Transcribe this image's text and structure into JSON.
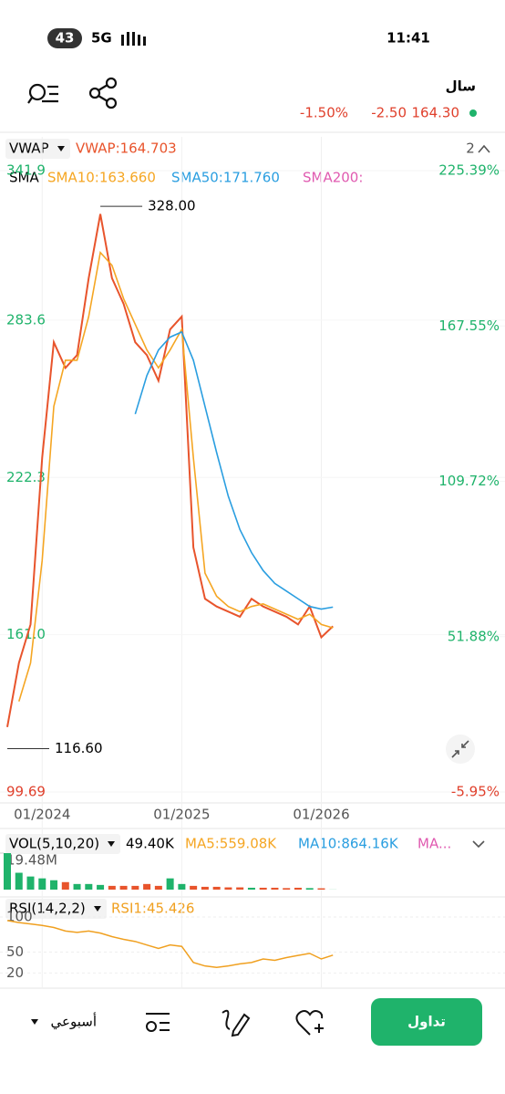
{
  "status_bar": {
    "battery": "43",
    "network": "5G",
    "time": "11:41"
  },
  "header": {
    "title": "سال",
    "change_pct": "-1.50%",
    "change": "-2.50",
    "price": "164.30"
  },
  "indicators": {
    "vwap_name": "VWAP",
    "vwap_value": "VWAP:164.703",
    "panes": "2",
    "sma_name": "SMA",
    "sma10": "SMA10:163.660",
    "sma50": "SMA50:171.760",
    "sma200": "SMA200:"
  },
  "chart_data": [
    {
      "type": "line",
      "x": [
        "10/2023",
        "11/2023",
        "12/2023",
        "01/2024",
        "02/2024",
        "03/2024",
        "04/2024",
        "05/2024",
        "06/2024",
        "07/2024",
        "08/2024",
        "09/2024",
        "10/2024",
        "11/2024",
        "12/2024",
        "01/2025",
        "02/2025",
        "03/2025",
        "04/2025",
        "05/2025",
        "06/2025",
        "07/2025",
        "08/2025",
        "09/2025",
        "10/2025",
        "11/2025",
        "12/2025",
        "01/2026",
        "02/2026"
      ],
      "xlim": [
        "10/2023",
        "03/2026"
      ],
      "xticks": [
        "01/2024",
        "01/2025",
        "01/2026"
      ],
      "ylim": [
        99.69,
        341.9
      ],
      "yticks": [
        341.9,
        283.6,
        222.3,
        {
          "value": 161,
          "label": "161.0"
        },
        99.69
      ],
      "y2lim": [
        -5.95,
        225.39
      ],
      "y2ticks": [
        {
          "value": 225.39,
          "label": "225.39%"
        },
        {
          "value": 167.55,
          "label": "167.55%"
        },
        {
          "value": 109.72,
          "label": "109.72%"
        },
        {
          "value": 51.88,
          "label": "51.88%"
        },
        {
          "value": -5.95,
          "label": "-5.95%"
        }
      ],
      "series": [
        {
          "color": "#e8542c",
          "values": [
            125,
            150,
            165,
            230,
            275,
            265,
            270,
            300,
            325,
            300,
            290,
            275,
            270,
            260,
            280,
            285,
            195,
            175,
            172,
            170,
            168,
            175,
            172,
            170,
            168,
            165,
            172,
            160,
            164.3
          ]
        },
        {
          "color": "#f5a623",
          "values": [
            null,
            135,
            150,
            190,
            250,
            268,
            268,
            285,
            310,
            305,
            292,
            282,
            272,
            265,
            272,
            280,
            230,
            185,
            176,
            172,
            170,
            172,
            173,
            171,
            169,
            167,
            169,
            165,
            163.66
          ]
        },
        {
          "color": "#2a9ee0",
          "values": [
            null,
            null,
            null,
            null,
            null,
            null,
            null,
            null,
            null,
            null,
            null,
            247,
            262,
            272,
            277,
            279,
            268,
            250,
            232,
            215,
            202,
            193,
            186,
            181,
            178,
            175,
            172,
            171,
            171.76
          ]
        }
      ],
      "annotations": [
        {
          "x": "06/2024",
          "value": 328,
          "label": "328.00"
        },
        {
          "x": "10/2023",
          "value": 116.6,
          "label": "116.60"
        }
      ]
    },
    {
      "type": "bar",
      "title": "VOL(5,10,20)",
      "last": "49.40K",
      "ma5": "MA5:559.08K",
      "ma10": "MA10:864.16K",
      "ma20": "MA...",
      "ylim": [
        0,
        19.48
      ],
      "yticks": [
        {
          "value": 19.48,
          "label": "19.48M"
        }
      ],
      "values": [
        19.48,
        9,
        7,
        6,
        5,
        4,
        3,
        3,
        2.5,
        2,
        2,
        2,
        3,
        2,
        6,
        3,
        2,
        1.5,
        1.5,
        1.2,
        1.2,
        1,
        1,
        1,
        0.8,
        1,
        0.8,
        0.7,
        0.05
      ]
    },
    {
      "type": "line",
      "title": "RSI(14,2,2)",
      "last": "RSI1:45.426",
      "ylim": [
        10,
        100
      ],
      "yticks": [
        100,
        50,
        20
      ],
      "color": "#f0a020",
      "values": [
        95,
        92,
        90,
        88,
        85,
        80,
        78,
        80,
        77,
        72,
        68,
        65,
        60,
        55,
        60,
        58,
        35,
        30,
        28,
        30,
        33,
        35,
        40,
        38,
        42,
        45,
        48,
        40,
        45.426
      ]
    }
  ],
  "nav": {
    "period": "أسبوعي",
    "trade": "تداول"
  }
}
